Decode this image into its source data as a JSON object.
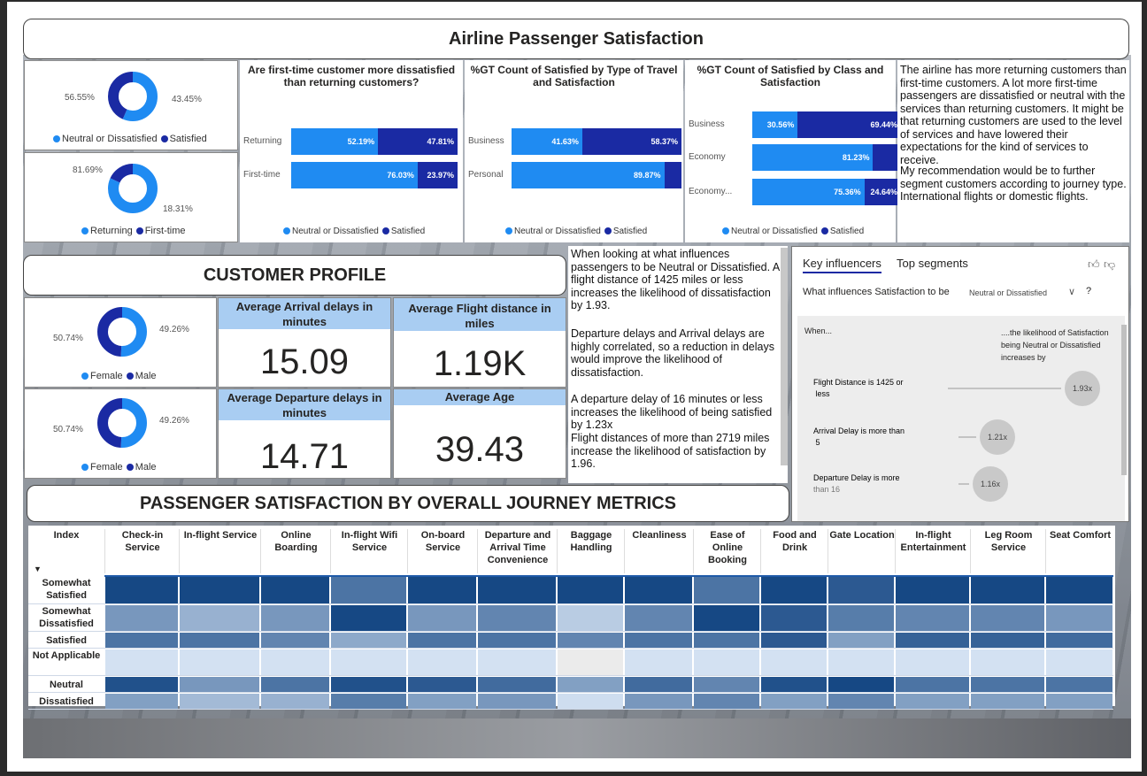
{
  "title": "Airline Passenger Satisfaction",
  "donut_satisfaction": {
    "left_label": "56.55%",
    "right_label": "43.45%",
    "legend": [
      "Neutral or Dissatisfied",
      "Satisfied"
    ],
    "values": [
      56.55,
      43.45
    ]
  },
  "donut_customer": {
    "left_label": "81.69%",
    "right_label": "18.31%",
    "legend": [
      "Returning",
      "First-time"
    ],
    "values": [
      81.69,
      18.31
    ]
  },
  "chart1": {
    "title": "Are first-time customer more dissatisfied than returning customers?",
    "rows": [
      {
        "cat": "Returning",
        "a": 52.19,
        "a_label": "52.19%",
        "b": 47.81,
        "b_label": "47.81%"
      },
      {
        "cat": "First-time",
        "a": 76.03,
        "a_label": "76.03%",
        "b": 23.97,
        "b_label": "23.97%"
      }
    ],
    "legend": [
      "Neutral or Dissatisfied",
      "Satisfied"
    ]
  },
  "chart2": {
    "title": "%GT Count of Satisfied by Type of Travel and Satisfaction",
    "rows": [
      {
        "cat": "Business",
        "a": 41.63,
        "a_label": "41.63%",
        "b": 58.37,
        "b_label": "58.37%"
      },
      {
        "cat": "Personal",
        "a": 89.87,
        "a_label": "89.87%",
        "b": 10.13,
        "b_label": ""
      }
    ],
    "legend": [
      "Neutral or Dissatisfied",
      "Satisfied"
    ]
  },
  "chart3": {
    "title": "%GT Count of Satisfied by Class and Satisfaction",
    "rows": [
      {
        "cat": "Business",
        "a": 30.56,
        "a_label": "30.56%",
        "b": 69.44,
        "b_label": "69.44%"
      },
      {
        "cat": "Economy",
        "a": 81.23,
        "a_label": "81.23%",
        "b": 18.77,
        "b_label": ""
      },
      {
        "cat": "Economy...",
        "a": 75.36,
        "a_label": "75.36%",
        "b": 24.64,
        "b_label": "24.64%"
      }
    ],
    "legend": [
      "Neutral or Dissatisfied",
      "Satisfied"
    ]
  },
  "insight1": {
    "p1": "The airline has more returning customers than first-time customers. A lot more first-time passengers are dissatisfied or neutral  with the services than returning customers. It might be that returning customers are used to the level of services and have lowered their expectations for the kind of services to receive.",
    "p2": "My recommendation would be to further segment customers according to journey type. International flights or domestic flights."
  },
  "profile": {
    "title": "CUSTOMER PROFILE",
    "donut_gender1": {
      "left_label": "50.74%",
      "right_label": "49.26%",
      "legend": [
        "Female",
        "Male"
      ],
      "values": [
        50.74,
        49.26
      ]
    },
    "donut_gender2": {
      "left_label": "50.74%",
      "right_label": "49.26%",
      "legend": [
        "Female",
        "Male"
      ],
      "values": [
        50.74,
        49.26
      ]
    },
    "kpi1": {
      "label": "Average Arrival delays in minutes",
      "value": "15.09"
    },
    "kpi2": {
      "label": "Average Flight distance in miles",
      "value": "1.19K"
    },
    "kpi3": {
      "label": "Average Departure delays in minutes",
      "value": "14.71"
    },
    "kpi4": {
      "label": "Average Age",
      "value": "39.43"
    }
  },
  "insight2": {
    "p1": "When looking at what influences passengers to be Neutral or Dissatisfied. A flight distance of 1425 miles or less increases the likelihood of dissatisfaction by 1.93.",
    "p2": "Departure delays and Arrival delays are highly correlated, so a reduction in delays would improve the likelihood of dissatisfaction.",
    "p3": "A departure delay of 16 minutes or less increases the likelihood of being satisfied by 1.23x",
    "p4": "Flight distances of more than 2719 miles increase the likelihood of satisfaction by 1.96."
  },
  "key_influencers": {
    "tab_active": "Key influencers",
    "tab_other": "Top segments",
    "question": "What influences Satisfaction to be",
    "selected": "Neutral or Dissatisfied",
    "help": "?",
    "when": "When...",
    "result_header": "....the likelihood of Satisfaction being Neutral or Dissatisfied increases by",
    "items": [
      {
        "label": "Flight Distance is 1425 or less",
        "value": "1.93x",
        "factor": 1.93
      },
      {
        "label": "Arrival Delay is more than 5",
        "value": "1.21x",
        "factor": 1.21
      },
      {
        "label": "Departure Delay is more",
        "label2": "than 16",
        "value": "1.16x",
        "factor": 1.16
      }
    ]
  },
  "journey": {
    "title": "PASSENGER SATISFACTION BY OVERALL JOURNEY METRICS",
    "columns": [
      "Index",
      "Check-in Service",
      "In-flight Service",
      "Online Boarding",
      "In-flight Wifi Service",
      "On-board Service",
      "Departure and Arrival Time Convenience",
      "Baggage Handling",
      "Cleanliness",
      "Ease of Online Booking",
      "Food and Drink",
      "Gate Location",
      "In-flight Entertainment",
      "Leg Room Service",
      "Seat Comfort"
    ],
    "rows": [
      "Somewhat Satisfied",
      "Somewhat Dissatisfied",
      "Satisfied",
      "Not Applicable",
      "Neutral",
      "Dissatisfied"
    ],
    "intensity": [
      [
        0.95,
        0.95,
        0.95,
        0.7,
        0.95,
        0.95,
        0.95,
        0.95,
        0.7,
        0.95,
        0.85,
        0.95,
        0.95,
        0.95
      ],
      [
        0.5,
        0.35,
        0.5,
        0.95,
        0.5,
        0.6,
        0.2,
        0.6,
        0.95,
        0.85,
        0.65,
        0.6,
        0.6,
        0.5
      ],
      [
        0.7,
        0.7,
        0.6,
        0.4,
        0.7,
        0.7,
        0.6,
        0.7,
        0.7,
        0.85,
        0.45,
        0.8,
        0.8,
        0.75
      ],
      [
        0.08,
        0.08,
        0.08,
        0.08,
        0.08,
        0.08,
        0.0,
        0.08,
        0.08,
        0.08,
        0.08,
        0.08,
        0.08,
        0.08
      ],
      [
        0.9,
        0.5,
        0.7,
        0.9,
        0.85,
        0.75,
        0.45,
        0.75,
        0.6,
        0.9,
        0.95,
        0.7,
        0.7,
        0.7
      ],
      [
        0.45,
        0.3,
        0.35,
        0.65,
        0.45,
        0.5,
        0.1,
        0.5,
        0.6,
        0.45,
        0.6,
        0.45,
        0.45,
        0.45
      ]
    ],
    "colors": {
      "dark": "#0b3f7e",
      "light": "#e4effc",
      "empty": "#ebebeb"
    }
  },
  "colors": {
    "light_blue": "#1f8bf2",
    "dark_blue": "#1a2aa3"
  }
}
